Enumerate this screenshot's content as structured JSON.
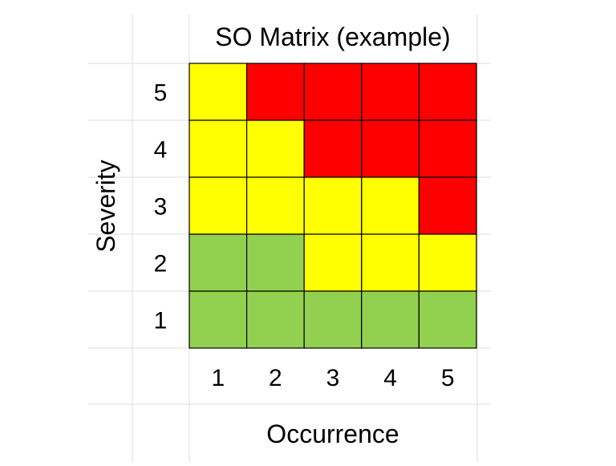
{
  "chart_data": {
    "type": "heatmap",
    "title": "SO Matrix (example)",
    "xlabel": "Occurrence",
    "ylabel": "Severity",
    "x_categories": [
      "1",
      "2",
      "3",
      "4",
      "5"
    ],
    "y_categories": [
      "1",
      "2",
      "3",
      "4",
      "5"
    ],
    "levels": {
      "green": "#92d050",
      "yellow": "#ffff00",
      "red": "#ff0000"
    },
    "grid_lines": true,
    "cells_by_severity_top_to_bottom": [
      {
        "severity": "5",
        "colors": [
          "yellow",
          "red",
          "red",
          "red",
          "red"
        ]
      },
      {
        "severity": "4",
        "colors": [
          "yellow",
          "yellow",
          "red",
          "red",
          "red"
        ]
      },
      {
        "severity": "3",
        "colors": [
          "yellow",
          "yellow",
          "yellow",
          "yellow",
          "red"
        ]
      },
      {
        "severity": "2",
        "colors": [
          "green",
          "green",
          "yellow",
          "yellow",
          "yellow"
        ]
      },
      {
        "severity": "1",
        "colors": [
          "green",
          "green",
          "green",
          "green",
          "green"
        ]
      }
    ]
  }
}
